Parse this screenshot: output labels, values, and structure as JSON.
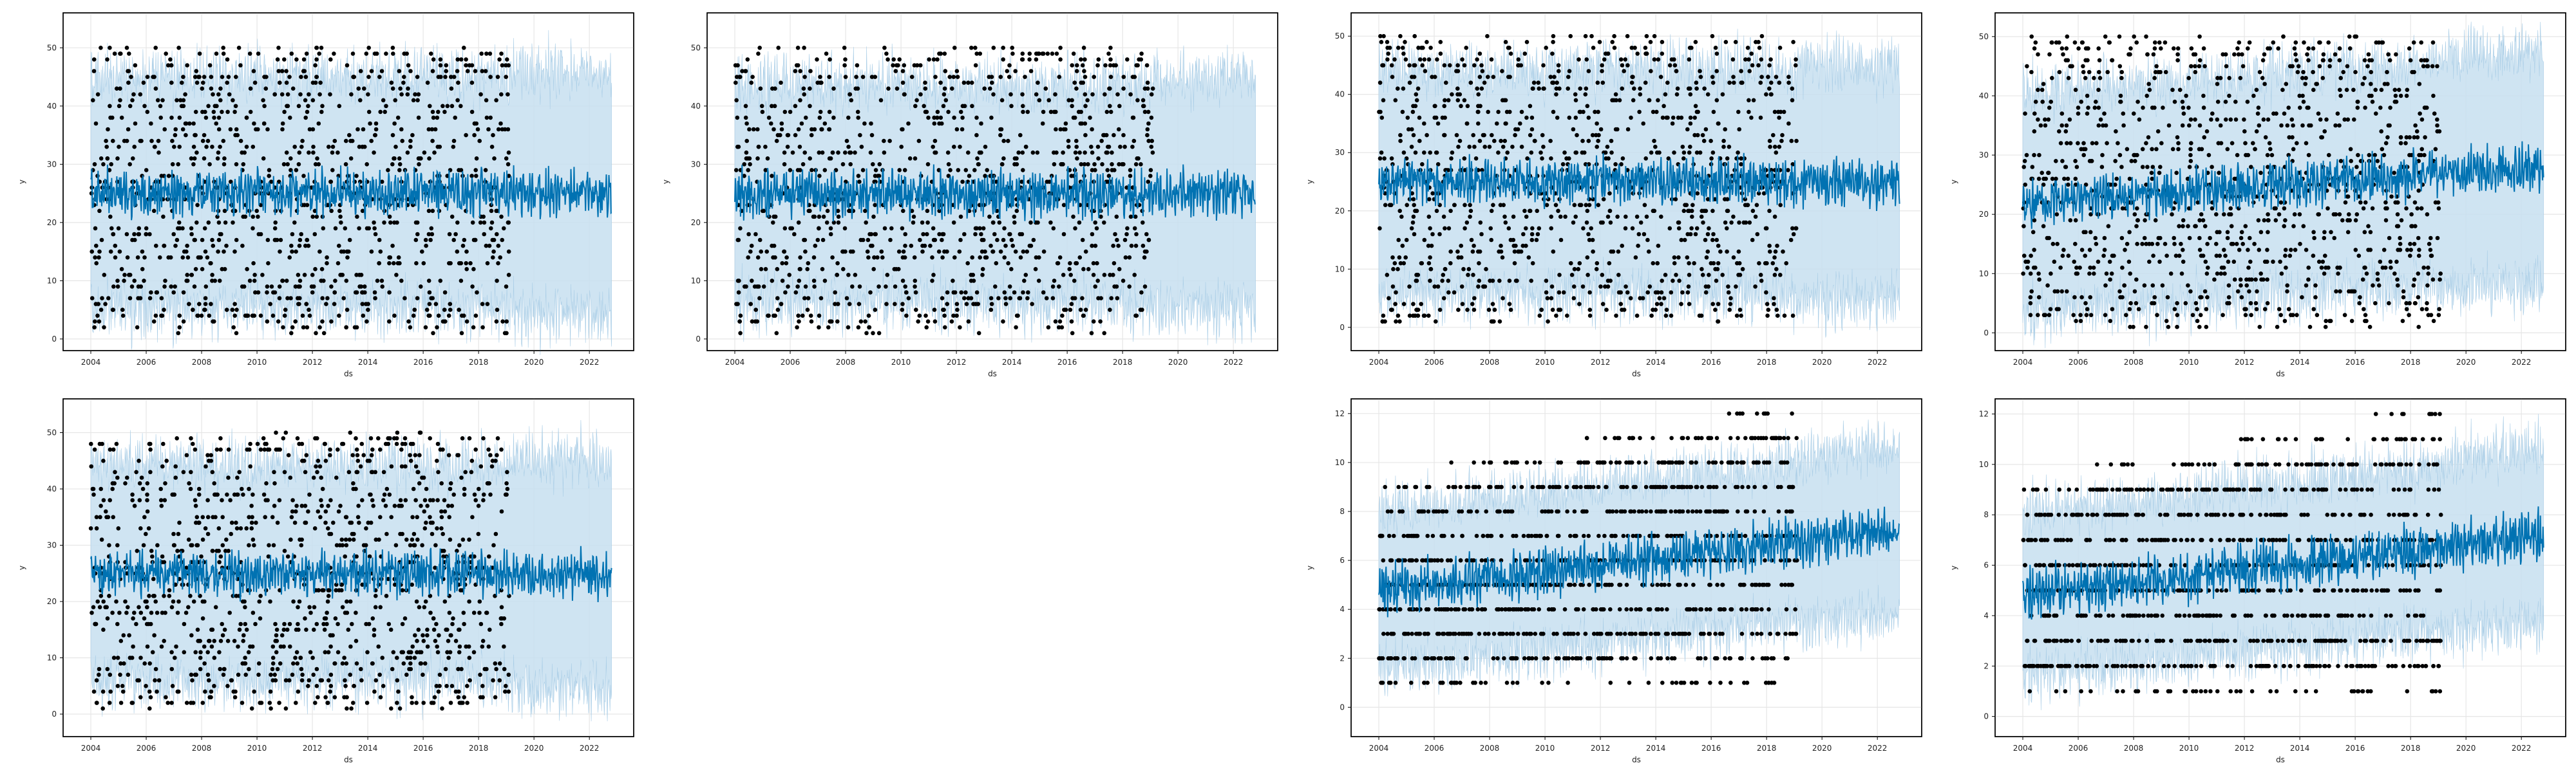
{
  "chart_data": [
    {
      "type": "scatter",
      "panel": 1,
      "xlabel": "ds",
      "ylabel": "y",
      "xlim": [
        2003.0,
        2023.6
      ],
      "ylim": [
        -2,
        56
      ],
      "xticks": [
        2004,
        2006,
        2008,
        2010,
        2012,
        2014,
        2016,
        2018,
        2020,
        2022
      ],
      "yticks": [
        0,
        10,
        20,
        30,
        40,
        50
      ],
      "history_range": [
        2004.0,
        2019.1
      ],
      "forecast_end": 2022.8,
      "points": {
        "count": 1100,
        "y_min": 1,
        "y_max": 50,
        "integer": true
      },
      "forecast": {
        "yhat_mean": 25,
        "yhat_range": [
          19,
          32
        ],
        "interval": [
          5,
          45
        ]
      },
      "colors": {
        "points": "#000000",
        "forecast": "#0072B2",
        "band": "#c7dff0"
      }
    },
    {
      "type": "scatter",
      "panel": 2,
      "xlabel": "ds",
      "ylabel": "y",
      "xlim": [
        2003.0,
        2023.6
      ],
      "ylim": [
        -2,
        56
      ],
      "xticks": [
        2004,
        2006,
        2008,
        2010,
        2012,
        2014,
        2016,
        2018,
        2020,
        2022
      ],
      "yticks": [
        0,
        10,
        20,
        30,
        40,
        50
      ],
      "history_range": [
        2004.0,
        2019.1
      ],
      "forecast_end": 2022.8,
      "points": {
        "count": 1100,
        "y_min": 1,
        "y_max": 50,
        "integer": true
      },
      "forecast": {
        "yhat_mean": 25,
        "yhat_range": [
          18,
          32
        ],
        "interval": [
          6,
          44
        ]
      },
      "colors": {
        "points": "#000000",
        "forecast": "#0072B2",
        "band": "#c7dff0"
      }
    },
    {
      "type": "scatter",
      "panel": 3,
      "xlabel": "ds",
      "ylabel": "y",
      "xlim": [
        2003.0,
        2023.6
      ],
      "ylim": [
        -4,
        54
      ],
      "xticks": [
        2004,
        2006,
        2008,
        2010,
        2012,
        2014,
        2016,
        2018,
        2020,
        2022
      ],
      "yticks": [
        0,
        10,
        20,
        30,
        40,
        50
      ],
      "history_range": [
        2004.0,
        2019.1
      ],
      "forecast_end": 2022.8,
      "points": {
        "count": 1100,
        "y_min": 1,
        "y_max": 50,
        "integer": true
      },
      "forecast": {
        "yhat_mean": 25,
        "yhat_range": [
          18,
          32
        ],
        "interval": [
          6,
          45
        ]
      },
      "colors": {
        "points": "#000000",
        "forecast": "#0072B2",
        "band": "#c7dff0"
      }
    },
    {
      "type": "scatter",
      "panel": 4,
      "xlabel": "ds",
      "ylabel": "y",
      "xlim": [
        2003.0,
        2023.6
      ],
      "ylim": [
        -3,
        54
      ],
      "xticks": [
        2004,
        2006,
        2008,
        2010,
        2012,
        2014,
        2016,
        2018,
        2020,
        2022
      ],
      "yticks": [
        0,
        10,
        20,
        30,
        40,
        50
      ],
      "history_range": [
        2004.0,
        2019.1
      ],
      "forecast_end": 2022.8,
      "points": {
        "count": 1100,
        "y_min": 1,
        "y_max": 50,
        "integer": true
      },
      "forecast": {
        "yhat_start": 22,
        "yhat_end": 28,
        "interval": [
          8,
          46
        ]
      },
      "colors": {
        "points": "#000000",
        "forecast": "#0072B2",
        "band": "#c7dff0"
      }
    },
    {
      "type": "scatter",
      "panel": 5,
      "xlabel": "ds",
      "ylabel": "y",
      "xlim": [
        2003.0,
        2023.6
      ],
      "ylim": [
        -4,
        56
      ],
      "xticks": [
        2004,
        2006,
        2008,
        2010,
        2012,
        2014,
        2016,
        2018,
        2020,
        2022
      ],
      "yticks": [
        0,
        10,
        20,
        30,
        40,
        50
      ],
      "history_range": [
        2004.0,
        2019.1
      ],
      "forecast_end": 2022.8,
      "points": {
        "count": 1100,
        "y_min": 1,
        "y_max": 50,
        "integer": true
      },
      "forecast": {
        "yhat_mean": 25,
        "yhat_range": [
          18,
          32
        ],
        "interval": [
          6,
          45
        ]
      },
      "colors": {
        "points": "#000000",
        "forecast": "#0072B2",
        "band": "#c7dff0"
      }
    },
    {
      "type": "scatter",
      "panel": 7,
      "xlabel": "ds",
      "ylabel": "y",
      "xlim": [
        2003.0,
        2023.6
      ],
      "ylim": [
        -1.2,
        12.6
      ],
      "xticks": [
        2004,
        2006,
        2008,
        2010,
        2012,
        2014,
        2016,
        2018,
        2020,
        2022
      ],
      "yticks": [
        0,
        2,
        4,
        6,
        8,
        10,
        12
      ],
      "history_range": [
        2004.0,
        2019.1
      ],
      "forecast_end": 2022.8,
      "points": {
        "count": 1100,
        "y_min": 1,
        "y_max": 12,
        "integer": true
      },
      "forecast": {
        "yhat_start": 4.8,
        "yhat_end": 7.2,
        "interval_width": 6.6
      },
      "colors": {
        "points": "#000000",
        "forecast": "#0072B2",
        "band": "#c7dff0"
      }
    },
    {
      "type": "scatter",
      "panel": 8,
      "xlabel": "ds",
      "ylabel": "y",
      "xlim": [
        2003.0,
        2023.6
      ],
      "ylim": [
        -0.8,
        12.6
      ],
      "xticks": [
        2004,
        2006,
        2008,
        2010,
        2012,
        2014,
        2016,
        2018,
        2020,
        2022
      ],
      "yticks": [
        0,
        2,
        4,
        6,
        8,
        10,
        12
      ],
      "history_range": [
        2004.0,
        2019.1
      ],
      "forecast_end": 2022.8,
      "points": {
        "count": 1100,
        "y_min": 1,
        "y_max": 12,
        "integer": true
      },
      "forecast": {
        "yhat_start": 4.8,
        "yhat_end": 7.2,
        "interval_width": 6.6
      },
      "colors": {
        "points": "#000000",
        "forecast": "#0072B2",
        "band": "#c7dff0"
      }
    }
  ]
}
